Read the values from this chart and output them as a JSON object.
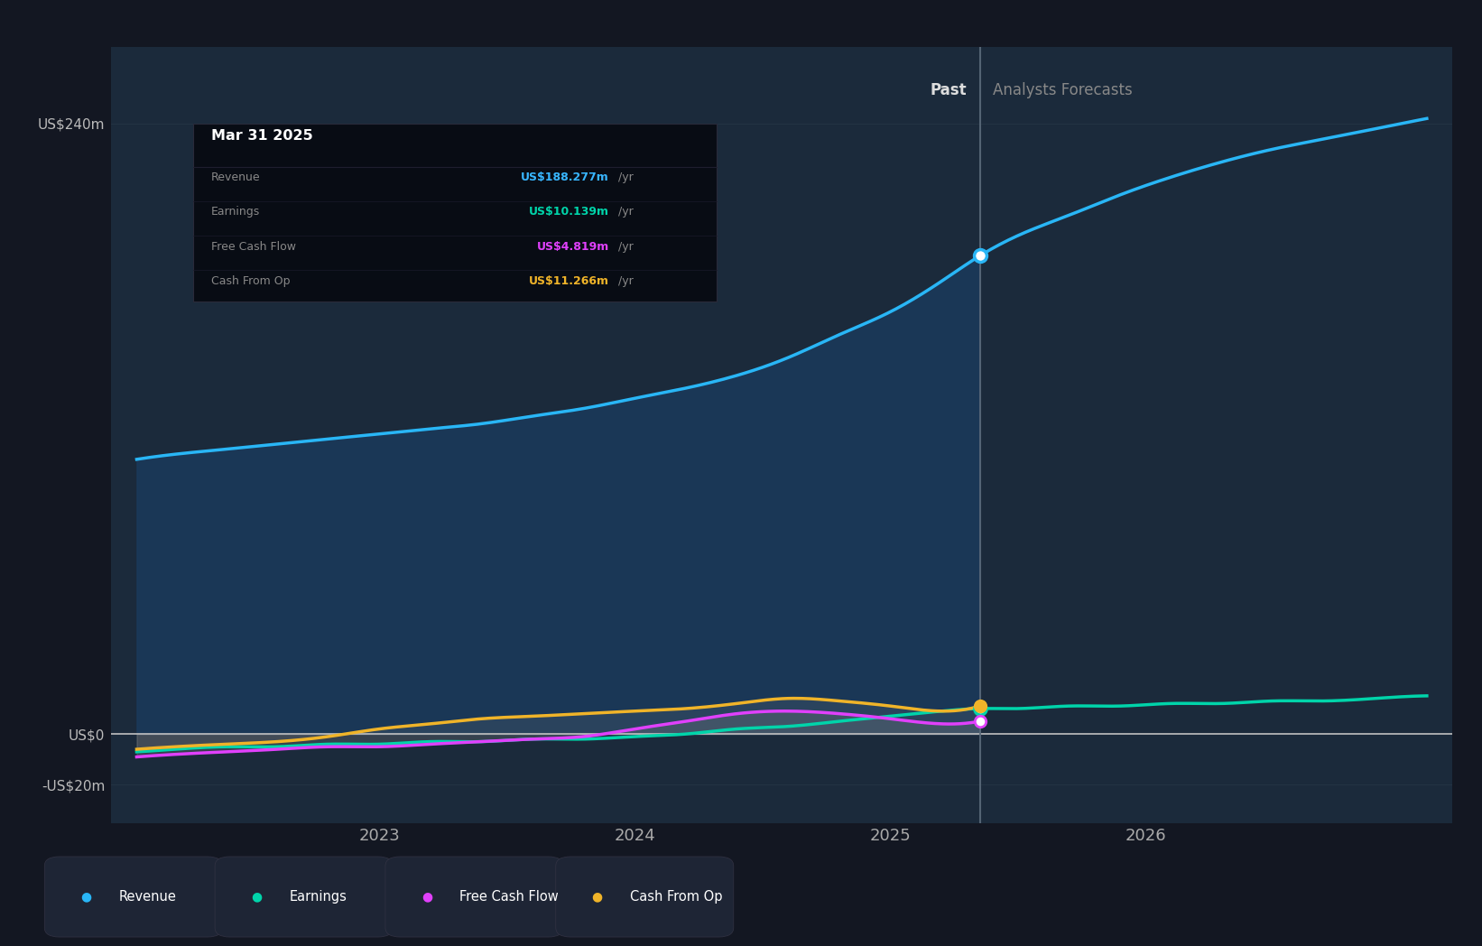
{
  "background_color": "#131722",
  "plot_bg_color": "#1b2a3b",
  "outer_bg_color": "#131722",
  "tooltip": {
    "date": "Mar 31 2025",
    "bg_color": "#0a0e17",
    "border_color": "#2a2a3a",
    "rows": [
      {
        "label": "Revenue",
        "value": "US$188.277m",
        "value_color": "#38b6ff",
        "suffix": " /yr"
      },
      {
        "label": "Earnings",
        "value": "US$10.139m",
        "value_color": "#00d4aa",
        "suffix": " /yr"
      },
      {
        "label": "Free Cash Flow",
        "value": "US$4.819m",
        "value_color": "#e040fb",
        "suffix": " /yr"
      },
      {
        "label": "Cash From Op",
        "value": "US$11.266m",
        "value_color": "#f0b429",
        "suffix": " /yr"
      }
    ]
  },
  "divider_x": 2025.35,
  "past_label": "Past",
  "forecast_label": "Analysts Forecasts",
  "x_ticks": [
    2023,
    2024,
    2025,
    2026
  ],
  "y_ticks": [
    240,
    0,
    -20
  ],
  "y_labels": [
    "US$240m",
    "US$0",
    "-US$20m"
  ],
  "revenue": {
    "color": "#29b6f6",
    "fill_color": "#1a3a5c",
    "fill_alpha": 0.85,
    "x": [
      2022.05,
      2022.2,
      2022.4,
      2022.6,
      2022.8,
      2023.0,
      2023.2,
      2023.4,
      2023.6,
      2023.8,
      2024.0,
      2024.2,
      2024.4,
      2024.6,
      2024.8,
      2025.0,
      2025.2,
      2025.35,
      2025.5,
      2025.7,
      2025.9,
      2026.1,
      2026.3,
      2026.5,
      2026.7,
      2026.9,
      2027.1
    ],
    "y": [
      108,
      110,
      112,
      114,
      116,
      118,
      120,
      122,
      125,
      128,
      132,
      136,
      141,
      148,
      157,
      166,
      178,
      188,
      196,
      204,
      212,
      219,
      225,
      230,
      234,
      238,
      242
    ],
    "marker_x": 2025.35,
    "marker_y": 188
  },
  "earnings": {
    "color": "#00d4aa",
    "x": [
      2022.05,
      2022.2,
      2022.4,
      2022.6,
      2022.8,
      2023.0,
      2023.2,
      2023.4,
      2023.6,
      2023.8,
      2024.0,
      2024.2,
      2024.4,
      2024.6,
      2024.8,
      2025.0,
      2025.2,
      2025.35,
      2025.5,
      2025.7,
      2025.9,
      2026.1,
      2026.3,
      2026.5,
      2026.7,
      2026.9,
      2027.1
    ],
    "y": [
      -7,
      -6,
      -5,
      -5,
      -4,
      -4,
      -3,
      -3,
      -2,
      -2,
      -1,
      0,
      2,
      3,
      5,
      7,
      9,
      10,
      10,
      11,
      11,
      12,
      12,
      13,
      13,
      14,
      15
    ],
    "marker_x": 2025.35,
    "marker_y": 10
  },
  "free_cash_flow": {
    "color": "#e040fb",
    "x": [
      2022.05,
      2022.2,
      2022.4,
      2022.6,
      2022.8,
      2023.0,
      2023.2,
      2023.4,
      2023.6,
      2023.8,
      2024.0,
      2024.2,
      2024.4,
      2024.6,
      2024.8,
      2025.0,
      2025.2,
      2025.35
    ],
    "y": [
      -9,
      -8,
      -7,
      -6,
      -5,
      -5,
      -4,
      -3,
      -2,
      -1,
      2,
      5,
      8,
      9,
      8,
      6,
      4,
      5
    ],
    "marker_x": 2025.35,
    "marker_y": 5
  },
  "cash_from_op": {
    "color": "#f0b429",
    "x": [
      2022.05,
      2022.2,
      2022.4,
      2022.6,
      2022.8,
      2023.0,
      2023.2,
      2023.4,
      2023.6,
      2023.8,
      2024.0,
      2024.2,
      2024.4,
      2024.6,
      2024.8,
      2025.0,
      2025.2,
      2025.35
    ],
    "y": [
      -6,
      -5,
      -4,
      -3,
      -1,
      2,
      4,
      6,
      7,
      8,
      9,
      10,
      12,
      14,
      13,
      11,
      9,
      11
    ],
    "marker_x": 2025.35,
    "marker_y": 11
  },
  "legend": [
    {
      "label": "Revenue",
      "color": "#29b6f6"
    },
    {
      "label": "Earnings",
      "color": "#00d4aa"
    },
    {
      "label": "Free Cash Flow",
      "color": "#e040fb"
    },
    {
      "label": "Cash From Op",
      "color": "#f0b429"
    }
  ],
  "ylim": [
    -35,
    270
  ],
  "xlim": [
    2021.95,
    2027.2
  ],
  "grid_color": "#2a3a4a",
  "divider_color": "#5a6a7a",
  "zero_line_color": "#c0c0c0"
}
